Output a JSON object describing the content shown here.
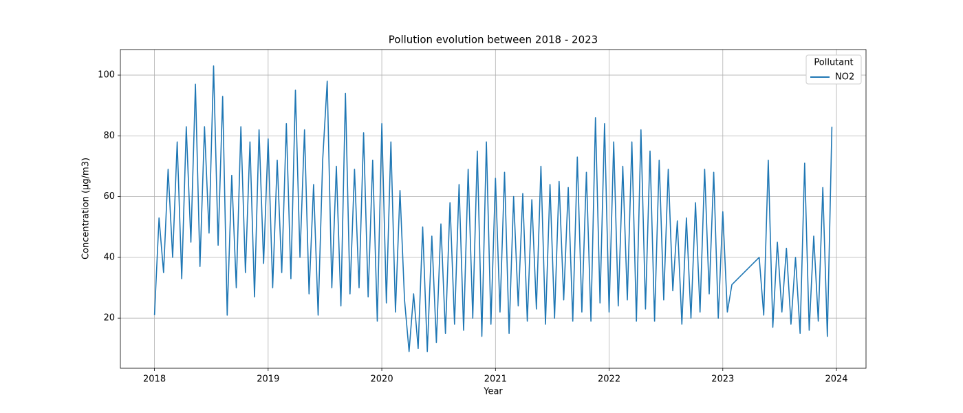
{
  "chart_data": {
    "type": "line",
    "title": "Pollution evolution between 2018 - 2023",
    "x_label": "Year",
    "y_label": "Concentration (µg/m3)",
    "legend_title": "Pollutant",
    "legend": "upper right",
    "grid": true,
    "xlim": [
      2017.7,
      2024.26
    ],
    "xticks": [
      2018,
      2019,
      2020,
      2021,
      2022,
      2023,
      2024
    ],
    "ylim": [
      3.5,
      108.4
    ],
    "yticks": [
      20,
      40,
      60,
      80,
      100
    ],
    "x": [
      2018,
      2018.04,
      2018.08,
      2018.12,
      2018.16,
      2018.2,
      2018.24,
      2018.28,
      2018.32,
      2018.36,
      2018.4,
      2018.44,
      2018.48,
      2018.52,
      2018.56,
      2018.6,
      2018.64,
      2018.68,
      2018.72,
      2018.76,
      2018.8,
      2018.84,
      2018.88,
      2018.92,
      2018.96,
      2019,
      2019.04,
      2019.08,
      2019.12,
      2019.16,
      2019.2,
      2019.24,
      2019.28,
      2019.32,
      2019.36,
      2019.4,
      2019.44,
      2019.48,
      2019.52,
      2019.56,
      2019.6,
      2019.64,
      2019.68,
      2019.72,
      2019.76,
      2019.8,
      2019.84,
      2019.88,
      2019.92,
      2019.96,
      2020,
      2020.04,
      2020.08,
      2020.12,
      2020.16,
      2020.2,
      2020.24,
      2020.28,
      2020.32,
      2020.36,
      2020.4,
      2020.44,
      2020.48,
      2020.52,
      2020.56,
      2020.6,
      2020.64,
      2020.68,
      2020.72,
      2020.76,
      2020.8,
      2020.84,
      2020.88,
      2020.92,
      2020.96,
      2021,
      2021.04,
      2021.08,
      2021.12,
      2021.16,
      2021.2,
      2021.24,
      2021.28,
      2021.32,
      2021.36,
      2021.4,
      2021.44,
      2021.48,
      2021.52,
      2021.56,
      2021.6,
      2021.64,
      2021.68,
      2021.72,
      2021.76,
      2021.8,
      2021.84,
      2021.88,
      2021.92,
      2021.96,
      2022,
      2022.04,
      2022.08,
      2022.12,
      2022.16,
      2022.2,
      2022.24,
      2022.28,
      2022.32,
      2022.36,
      2022.4,
      2022.44,
      2022.48,
      2022.52,
      2022.56,
      2022.6,
      2022.64,
      2022.68,
      2022.72,
      2022.76,
      2022.8,
      2022.84,
      2022.88,
      2022.92,
      2022.96,
      2023,
      2023.04,
      2023.08,
      2023.32,
      2023.36,
      2023.4,
      2023.44,
      2023.48,
      2023.52,
      2023.56,
      2023.6,
      2023.64,
      2023.68,
      2023.72,
      2023.76,
      2023.8,
      2023.84,
      2023.88,
      2023.92,
      2023.96
    ],
    "series": [
      {
        "name": "NO2",
        "color": "#1f77b4",
        "values": [
          21,
          53,
          35,
          69,
          40,
          78,
          33,
          83,
          45,
          97,
          37,
          83,
          48,
          103,
          44,
          93,
          21,
          67,
          30,
          83,
          35,
          78,
          27,
          82,
          38,
          79,
          30,
          72,
          35,
          84,
          33,
          95,
          40,
          82,
          28,
          64,
          21,
          72,
          98,
          30,
          70,
          24,
          94,
          28,
          69,
          30,
          81,
          27,
          72,
          19,
          84,
          25,
          78,
          22,
          62,
          26,
          9,
          28,
          10,
          50,
          9,
          47,
          12,
          51,
          15,
          58,
          18,
          64,
          16,
          69,
          20,
          75,
          14,
          78,
          18,
          66,
          22,
          68,
          15,
          60,
          24,
          61,
          19,
          59,
          23,
          70,
          18,
          64,
          20,
          65,
          26,
          63,
          19,
          73,
          22,
          68,
          19,
          86,
          25,
          84,
          22,
          78,
          24,
          70,
          26,
          78,
          19,
          82,
          23,
          75,
          19,
          72,
          26,
          69,
          29,
          52,
          18,
          53,
          20,
          58,
          22,
          69,
          28,
          68,
          20,
          55,
          22,
          31,
          40,
          21,
          72,
          17,
          45,
          22,
          43,
          18,
          40,
          15,
          71,
          16,
          47,
          19,
          63,
          14,
          83
        ]
      }
    ]
  }
}
